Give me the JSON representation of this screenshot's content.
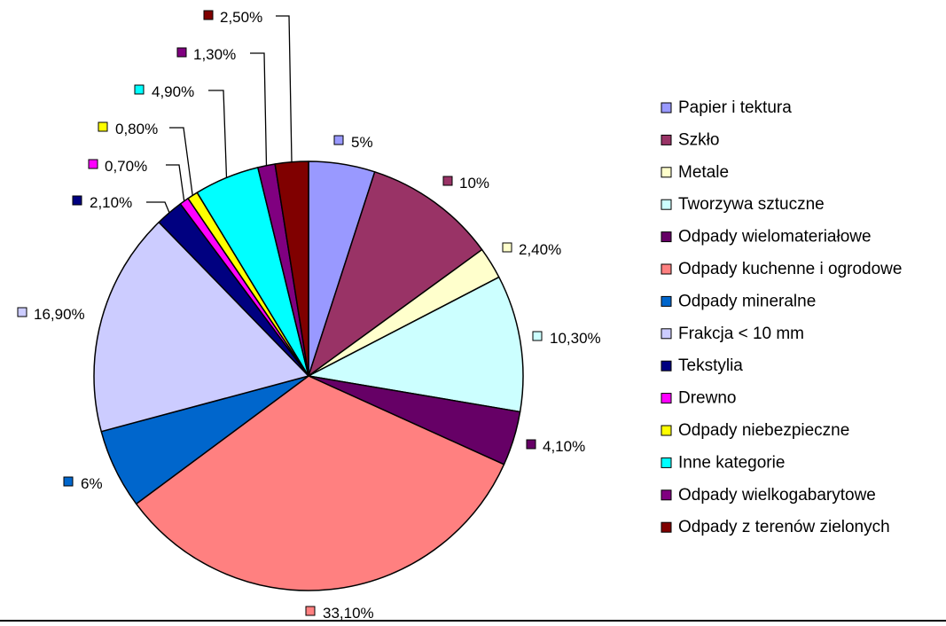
{
  "chart_data": {
    "type": "pie",
    "title": "",
    "legend_position": "right",
    "labels_outside_with_leader_lines": true,
    "slices": [
      {
        "category": "Papier i tektura",
        "value": 5,
        "label": "5%",
        "color": "#9999FF"
      },
      {
        "category": "Szkło",
        "value": 10,
        "label": "10%",
        "color": "#993366"
      },
      {
        "category": "Metale",
        "value": 2.4,
        "label": "2,40%",
        "color": "#FFFFCC"
      },
      {
        "category": "Tworzywa sztuczne",
        "value": 10.3,
        "label": "10,30%",
        "color": "#CCFFFF"
      },
      {
        "category": "Odpady wielomateriałowe",
        "value": 4.1,
        "label": "4,10%",
        "color": "#660066"
      },
      {
        "category": "Odpady kuchenne i ogrodowe",
        "value": 33.1,
        "label": "33,10%",
        "color": "#FF8080"
      },
      {
        "category": "Odpady mineralne",
        "value": 6,
        "label": "6%",
        "color": "#0066CC"
      },
      {
        "category": "Frakcja < 10 mm",
        "value": 16.9,
        "label": "16,90%",
        "color": "#CCCCFF"
      },
      {
        "category": "Tekstylia",
        "value": 2.1,
        "label": "2,10%",
        "color": "#000080"
      },
      {
        "category": "Drewno",
        "value": 0.7,
        "label": "0,70%",
        "color": "#FF00FF"
      },
      {
        "category": "Odpady niebezpieczne",
        "value": 0.8,
        "label": "0,80%",
        "color": "#FFFF00"
      },
      {
        "category": "Inne kategorie",
        "value": 4.9,
        "label": "4,90%",
        "color": "#00FFFF"
      },
      {
        "category": "Odpady wielkogabarytowe",
        "value": 1.3,
        "label": "1,30%",
        "color": "#800080"
      },
      {
        "category": "Odpady z terenów zielonych",
        "value": 2.5,
        "label": "2,50%",
        "color": "#800000"
      }
    ]
  }
}
